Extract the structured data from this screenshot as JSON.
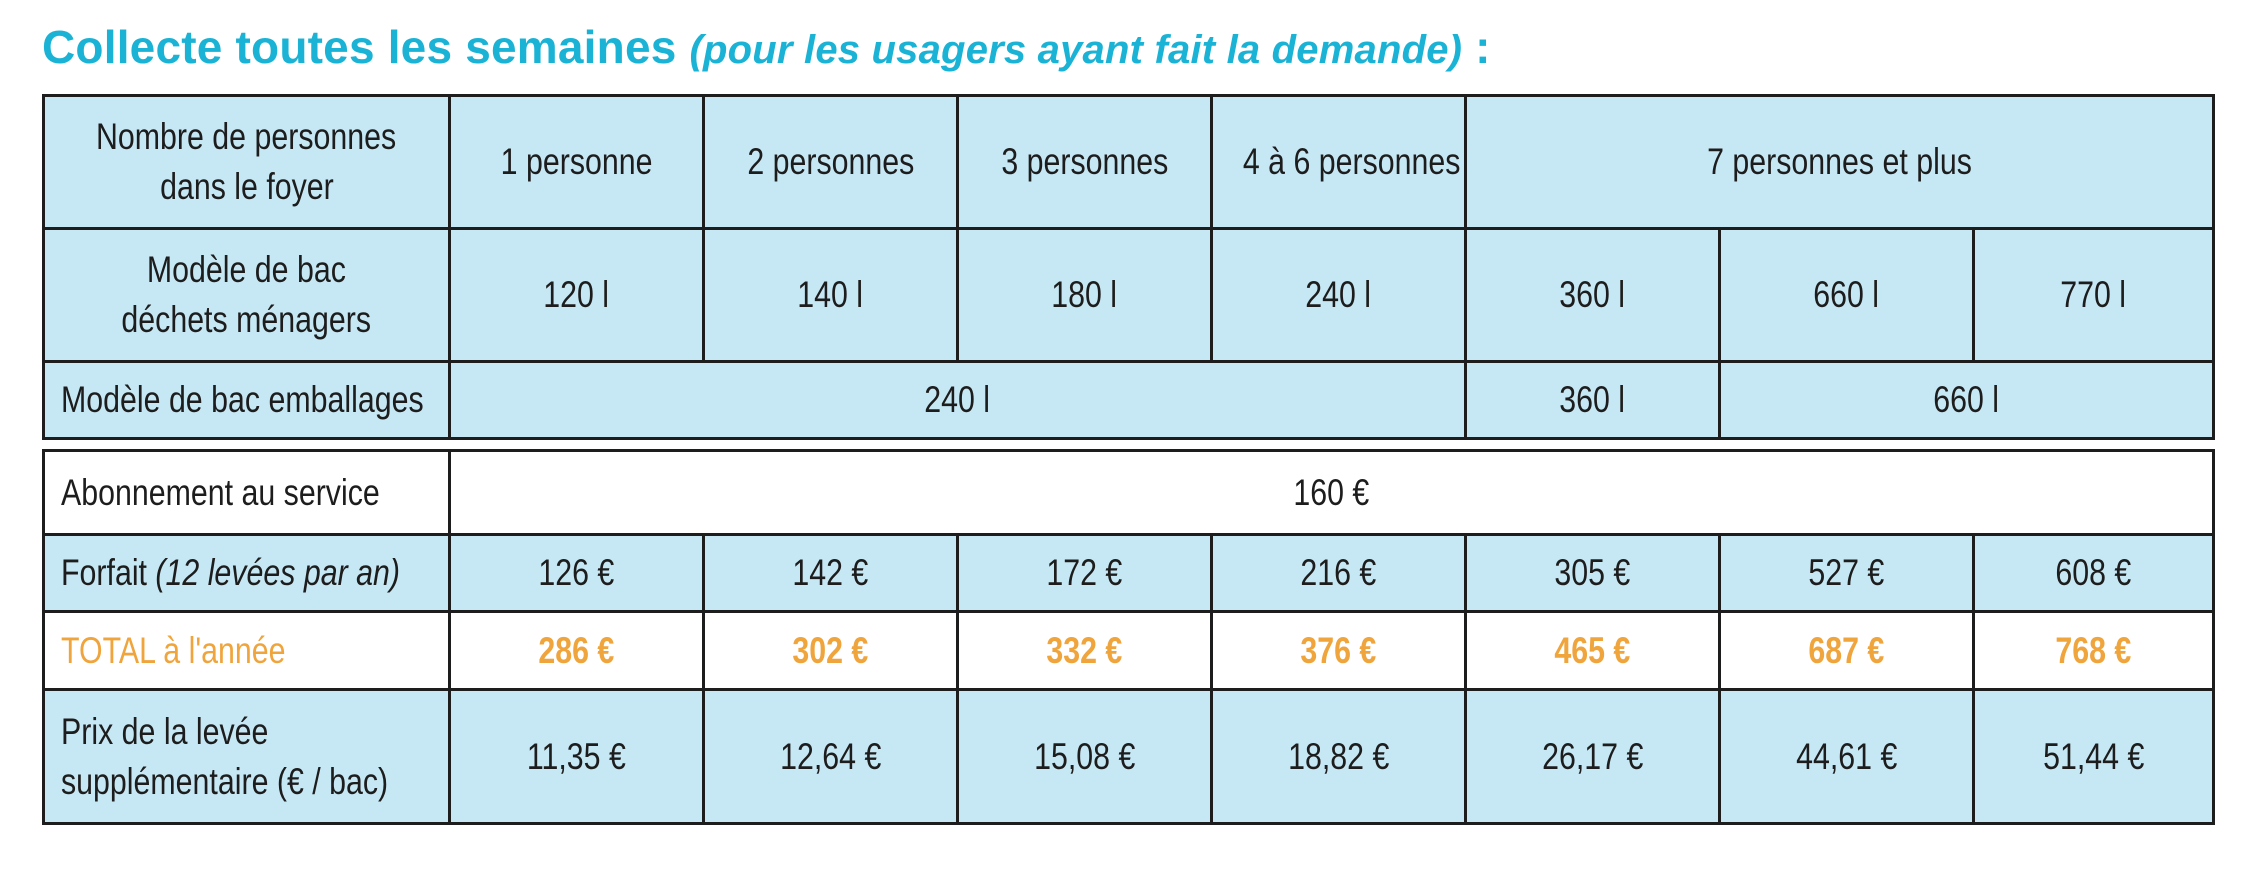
{
  "title": {
    "main": "Collecte toutes les semaines",
    "sub": "(pour les usagers ayant fait la demande)",
    "suffix": " :"
  },
  "table1": {
    "persons_label_1": "Nombre de personnes",
    "persons_label_2": "dans le foyer",
    "persons": [
      "1 personne",
      "2 personnes",
      "3 personnes",
      "4 à 6 personnes",
      "7 personnes et plus"
    ],
    "bac_dechets_label_1": "Modèle de bac",
    "bac_dechets_label_2": "déchets ménagers",
    "bac_dechets": [
      "120 l",
      "140 l",
      "180 l",
      "240 l",
      "360 l",
      "660 l",
      "770 l"
    ],
    "bac_emballages_label": "Modèle de bac emballages",
    "bac_emballages": [
      "240 l",
      "360 l",
      "660 l"
    ]
  },
  "table2": {
    "abonnement_label": "Abonnement au service",
    "abonnement_value": "160 €",
    "forfait_label": "Forfait",
    "forfait_label_note": "(12 levées par an)",
    "forfait": [
      "126 €",
      "142 €",
      "172 €",
      "216 €",
      "305 €",
      "527 €",
      "608 €"
    ],
    "total_label": "TOTAL à l'année",
    "total": [
      "286 €",
      "302 €",
      "332 €",
      "376 €",
      "465 €",
      "687 €",
      "768 €"
    ],
    "levee_label_1": "Prix de la levée",
    "levee_label_2": "supplémentaire (€ / bac)",
    "levee": [
      "11,35 €",
      "12,64 €",
      "15,08 €",
      "18,82 €",
      "26,17 €",
      "44,61 €",
      "51,44 €"
    ]
  },
  "colors": {
    "title": "#1ab3d6",
    "cell_blue": "#c6e7f4",
    "total_orange": "#f0a43c",
    "border": "#1d1d1d"
  }
}
